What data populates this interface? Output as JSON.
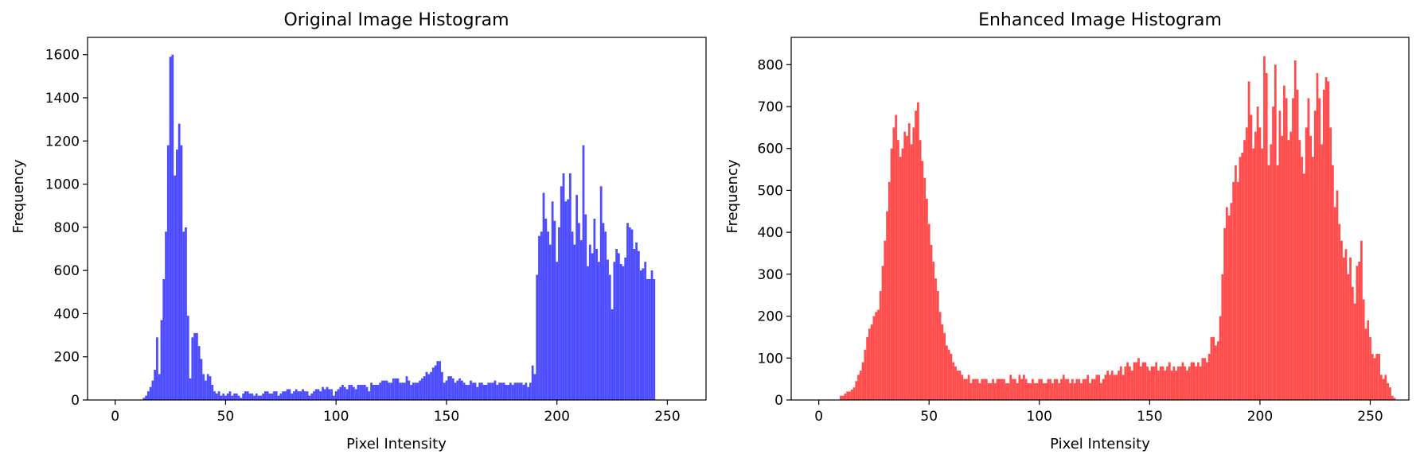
{
  "chart_data": [
    {
      "type": "bar",
      "title": "Original Image Histogram",
      "xlabel": "Pixel Intensity",
      "ylabel": "Frequency",
      "xlim": [
        -12.5,
        267.5
      ],
      "ylim": [
        0,
        1680
      ],
      "xticks": [
        0,
        50,
        100,
        150,
        200,
        250
      ],
      "yticks": [
        0,
        200,
        400,
        600,
        800,
        1000,
        1200,
        1400,
        1600
      ],
      "bar_color": "#4d4dff",
      "bin_width": 1,
      "x_start": 0,
      "values": [
        0,
        0,
        0,
        0,
        0,
        0,
        0,
        0,
        0,
        0,
        0,
        0,
        0,
        10,
        20,
        40,
        60,
        90,
        140,
        290,
        120,
        370,
        560,
        780,
        1180,
        1590,
        1600,
        1040,
        1160,
        1280,
        1180,
        780,
        800,
        390,
        100,
        290,
        310,
        310,
        250,
        190,
        120,
        90,
        120,
        110,
        70,
        40,
        30,
        40,
        20,
        30,
        20,
        30,
        40,
        20,
        30,
        30,
        20,
        10,
        30,
        40,
        40,
        30,
        30,
        20,
        30,
        20,
        20,
        30,
        40,
        40,
        30,
        30,
        40,
        40,
        20,
        30,
        40,
        40,
        50,
        50,
        30,
        40,
        50,
        40,
        40,
        50,
        40,
        40,
        20,
        30,
        40,
        50,
        50,
        40,
        60,
        50,
        60,
        50,
        50,
        20,
        40,
        50,
        60,
        70,
        60,
        50,
        70,
        70,
        60,
        50,
        70,
        70,
        70,
        70,
        60,
        40,
        80,
        70,
        70,
        70,
        80,
        90,
        90,
        90,
        80,
        80,
        100,
        100,
        100,
        80,
        80,
        80,
        110,
        90,
        70,
        80,
        80,
        80,
        90,
        100,
        110,
        130,
        120,
        130,
        150,
        160,
        180,
        180,
        130,
        80,
        90,
        110,
        110,
        100,
        80,
        90,
        100,
        90,
        80,
        70,
        70,
        90,
        80,
        80,
        60,
        80,
        80,
        70,
        70,
        80,
        80,
        80,
        90,
        70,
        80,
        80,
        80,
        70,
        70,
        80,
        70,
        80,
        80,
        80,
        80,
        70,
        80,
        60,
        80,
        160,
        120,
        580,
        760,
        780,
        960,
        840,
        780,
        720,
        920,
        830,
        640,
        800,
        990,
        1050,
        920,
        930,
        1050,
        780,
        720,
        950,
        820,
        740,
        1180,
        860,
        620,
        720,
        680,
        840,
        700,
        640,
        990,
        820,
        780,
        650,
        580,
        420,
        640,
        700,
        680,
        630,
        620,
        660,
        820,
        800,
        790,
        700,
        730,
        690,
        600,
        610,
        640,
        560,
        560,
        600,
        560,
        0,
        0,
        0,
        0,
        0,
        0,
        0,
        0,
        0,
        0,
        0,
        0,
        0,
        0,
        0,
        0,
        0,
        0
      ]
    },
    {
      "type": "bar",
      "title": "Enhanced Image Histogram",
      "xlabel": "Pixel Intensity",
      "ylabel": "Frequency",
      "xlim": [
        -12.5,
        267.5
      ],
      "ylim": [
        0,
        865
      ],
      "xticks": [
        0,
        50,
        100,
        150,
        200,
        250
      ],
      "yticks": [
        0,
        100,
        200,
        300,
        400,
        500,
        600,
        700,
        800
      ],
      "bar_color": "#ff4d4d",
      "bin_width": 1,
      "x_start": 0,
      "values": [
        0,
        0,
        0,
        0,
        0,
        0,
        0,
        0,
        0,
        0,
        10,
        10,
        15,
        20,
        20,
        25,
        30,
        45,
        60,
        70,
        90,
        120,
        150,
        170,
        180,
        200,
        210,
        215,
        260,
        320,
        380,
        450,
        520,
        600,
        650,
        680,
        620,
        580,
        600,
        640,
        630,
        660,
        610,
        650,
        690,
        710,
        620,
        570,
        530,
        480,
        420,
        370,
        330,
        290,
        260,
        210,
        180,
        160,
        130,
        120,
        110,
        90,
        80,
        70,
        70,
        60,
        50,
        50,
        60,
        40,
        50,
        50,
        50,
        40,
        50,
        50,
        50,
        40,
        40,
        50,
        40,
        50,
        50,
        50,
        50,
        40,
        40,
        60,
        50,
        50,
        40,
        60,
        50,
        60,
        50,
        40,
        40,
        50,
        40,
        40,
        50,
        50,
        40,
        40,
        50,
        50,
        40,
        50,
        50,
        40,
        50,
        60,
        50,
        50,
        40,
        50,
        40,
        50,
        50,
        40,
        50,
        50,
        60,
        40,
        50,
        50,
        60,
        60,
        40,
        50,
        60,
        70,
        60,
        70,
        60,
        60,
        70,
        80,
        60,
        80,
        90,
        80,
        70,
        90,
        90,
        100,
        80,
        90,
        90,
        80,
        70,
        80,
        80,
        90,
        70,
        80,
        80,
        70,
        80,
        90,
        70,
        80,
        70,
        80,
        80,
        90,
        80,
        70,
        80,
        90,
        90,
        80,
        90,
        80,
        100,
        100,
        90,
        110,
        150,
        150,
        130,
        140,
        200,
        300,
        410,
        460,
        440,
        470,
        520,
        560,
        520,
        580,
        590,
        620,
        650,
        760,
        680,
        600,
        640,
        700,
        650,
        600,
        820,
        780,
        560,
        610,
        700,
        800,
        560,
        690,
        630,
        750,
        720,
        620,
        640,
        720,
        810,
        740,
        620,
        580,
        540,
        650,
        720,
        630,
        580,
        690,
        780,
        720,
        610,
        740,
        770,
        760,
        650,
        560,
        460,
        500,
        420,
        380,
        340,
        360,
        300,
        340,
        270,
        230,
        320,
        330,
        380,
        240,
        170,
        190,
        150,
        110,
        100,
        110,
        110,
        60,
        50,
        60,
        40,
        30,
        10,
        5,
        0,
        0,
        0,
        0,
        0,
        0,
        0,
        0,
        0,
        0,
        0,
        0,
        0,
        0,
        0,
        0,
        0,
        0,
        0
      ]
    }
  ]
}
